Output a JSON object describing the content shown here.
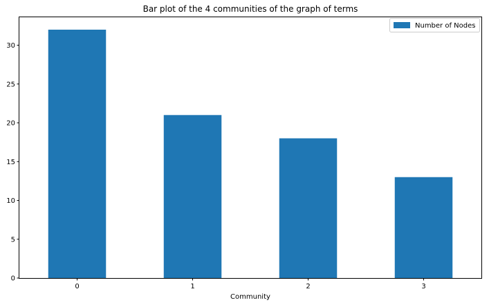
{
  "chart_data": {
    "type": "bar",
    "title": "Bar plot of the 4 communities of the graph of terms",
    "xlabel": "Community",
    "ylabel": "",
    "categories": [
      "0",
      "1",
      "2",
      "3"
    ],
    "series": [
      {
        "name": "Number of Nodes",
        "values": [
          32,
          21,
          18,
          13
        ],
        "color": "#1f77b4"
      }
    ],
    "ylim": [
      0,
      33.6
    ],
    "yticks": [
      0,
      5,
      10,
      15,
      20,
      25,
      30
    ],
    "legend_position": "top-right",
    "grid": false
  }
}
